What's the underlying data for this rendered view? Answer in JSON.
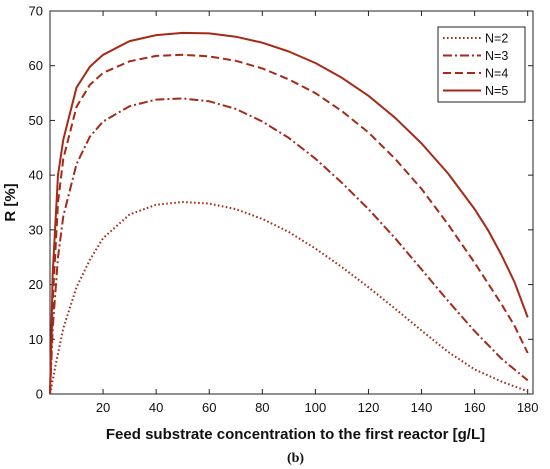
{
  "chart_data": {
    "type": "line",
    "xlabel": "Feed substrate concentration to the first reactor [g/L]",
    "ylabel": "R [%]",
    "panel_label": "(b)",
    "xlim": [
      0,
      182
    ],
    "ylim": [
      0,
      70
    ],
    "xticks": [
      20,
      40,
      60,
      80,
      100,
      120,
      140,
      160,
      180
    ],
    "yticks": [
      0,
      10,
      20,
      30,
      40,
      50,
      60,
      70
    ],
    "grid": false,
    "legend_position": "top-right",
    "line_color": "#a52a17",
    "series": [
      {
        "name": "N=2",
        "style": "dotted",
        "x": [
          0,
          2,
          5,
          10,
          15,
          20,
          30,
          40,
          50,
          60,
          70,
          80,
          90,
          100,
          110,
          120,
          130,
          140,
          150,
          160,
          170,
          180
        ],
        "y": [
          0,
          5,
          12,
          19.5,
          24.5,
          28.5,
          32.8,
          34.6,
          35.1,
          34.8,
          33.8,
          32,
          29.6,
          26.6,
          23.2,
          19.5,
          15.6,
          11.6,
          7.7,
          4.5,
          2.3,
          0.5
        ]
      },
      {
        "name": "N=3",
        "style": "dashdot",
        "x": [
          0,
          1,
          3,
          5,
          10,
          15,
          20,
          30,
          40,
          50,
          60,
          70,
          80,
          90,
          100,
          110,
          120,
          130,
          140,
          150,
          160,
          170,
          175,
          180
        ],
        "y": [
          0,
          12,
          25,
          32.5,
          42,
          47,
          49.8,
          52.6,
          53.8,
          54,
          53.5,
          52.1,
          49.8,
          46.8,
          43,
          38.6,
          33.8,
          28.5,
          22.8,
          17,
          11.5,
          6.5,
          4.5,
          2.5
        ]
      },
      {
        "name": "N=4",
        "style": "dashed",
        "x": [
          0,
          1,
          3,
          5,
          10,
          15,
          20,
          30,
          40,
          50,
          60,
          70,
          80,
          90,
          100,
          110,
          120,
          130,
          140,
          150,
          160,
          170,
          175,
          180
        ],
        "y": [
          0,
          17,
          35,
          43,
          52.5,
          56.5,
          58.7,
          60.8,
          61.8,
          62,
          61.7,
          60.9,
          59.5,
          57.5,
          55,
          51.7,
          47.8,
          43,
          37.5,
          31,
          24,
          16.5,
          12.5,
          7.5
        ]
      },
      {
        "name": "N=5",
        "style": "solid",
        "x": [
          0,
          1,
          3,
          5,
          10,
          15,
          20,
          30,
          40,
          50,
          60,
          70,
          80,
          90,
          100,
          110,
          120,
          130,
          140,
          150,
          160,
          165,
          170,
          175,
          180
        ],
        "y": [
          0,
          22,
          40,
          46.5,
          56,
          59.8,
          62,
          64.5,
          65.6,
          66,
          65.9,
          65.3,
          64.2,
          62.6,
          60.5,
          57.8,
          54.5,
          50.5,
          45.8,
          40.3,
          33.8,
          30,
          25.5,
          20.5,
          14
        ]
      }
    ]
  }
}
